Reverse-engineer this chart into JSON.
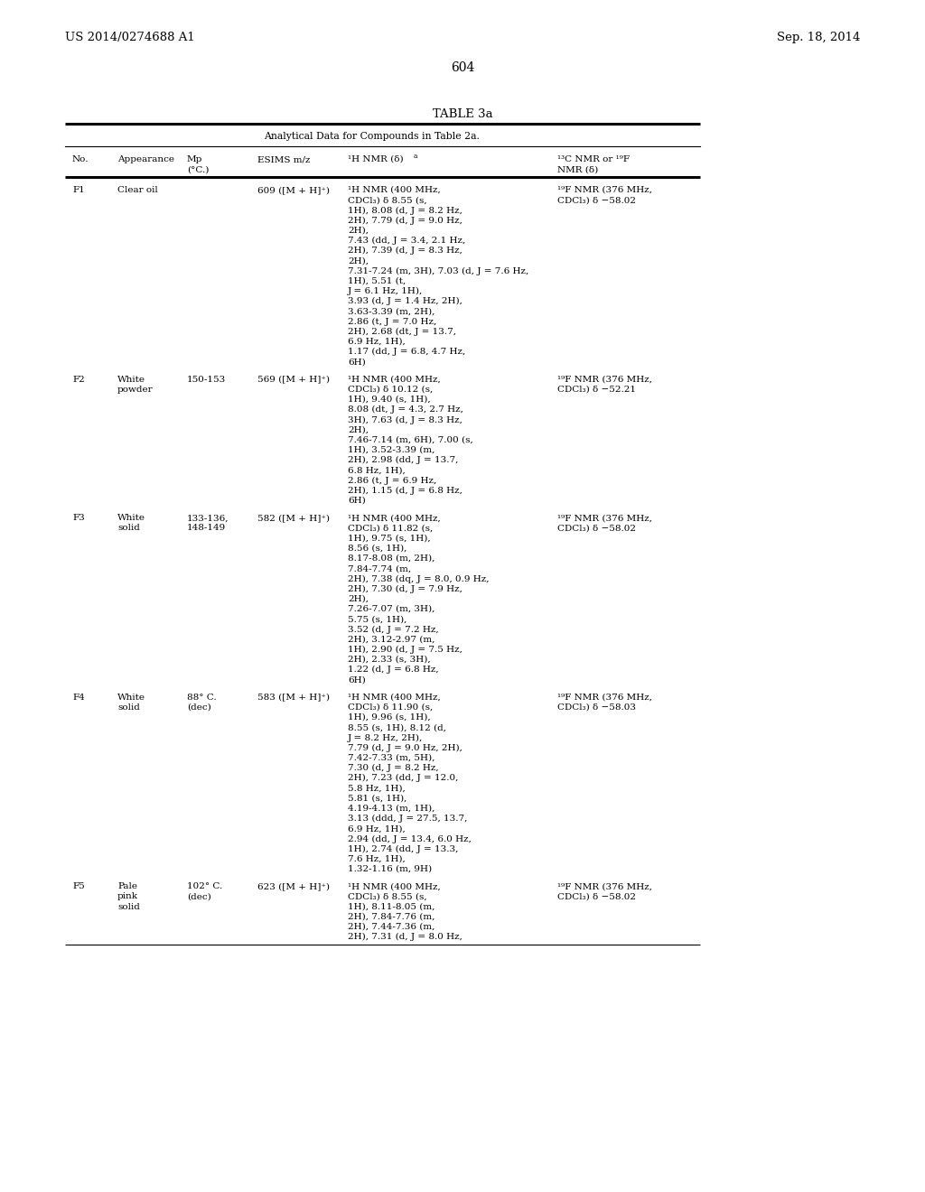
{
  "header_left": "US 2014/0274688 A1",
  "header_right": "Sep. 18, 2014",
  "page_number": "604",
  "table_title": "TABLE 3a",
  "table_subtitle": "Analytical Data for Compounds in Table 2a.",
  "background_color": "#ffffff",
  "text_color": "#000000",
  "rows": [
    {
      "no": "F1",
      "appearance": "Clear oil",
      "mp": "",
      "esims": "609 ([M + H]⁺)",
      "h_nmr": "¹H NMR (400 MHz,\nCDCl₃) δ 8.55 (s,\n1H), 8.08 (d, J = 8.2 Hz,\n2H), 7.79 (d, J = 9.0 Hz,\n2H),\n7.43 (dd, J = 3.4, 2.1 Hz,\n2H), 7.39 (d, J = 8.3 Hz,\n2H),\n7.31-7.24 (m, 3H), 7.03 (d, J = 7.6 Hz,\n1H), 5.51 (t,\nJ = 6.1 Hz, 1H),\n3.93 (d, J = 1.4 Hz, 2H),\n3.63-3.39 (m, 2H),\n2.86 (t, J = 7.0 Hz,\n2H), 2.68 (dt, J = 13.7,\n6.9 Hz, 1H),\n1.17 (dd, J = 6.8, 4.7 Hz,\n6H)",
      "c_f_nmr": "¹⁹F NMR (376 MHz,\nCDCl₃) δ −58.02"
    },
    {
      "no": "F2",
      "appearance": "White\npowder",
      "mp": "150-153",
      "esims": "569 ([M + H]⁺)",
      "h_nmr": "¹H NMR (400 MHz,\nCDCl₃) δ 10.12 (s,\n1H), 9.40 (s, 1H),\n8.08 (dt, J = 4.3, 2.7 Hz,\n3H), 7.63 (d, J = 8.3 Hz,\n2H),\n7.46-7.14 (m, 6H), 7.00 (s,\n1H), 3.52-3.39 (m,\n2H), 2.98 (dd, J = 13.7,\n6.8 Hz, 1H),\n2.86 (t, J = 6.9 Hz,\n2H), 1.15 (d, J = 6.8 Hz,\n6H)",
      "c_f_nmr": "¹⁹F NMR (376 MHz,\nCDCl₃) δ −52.21"
    },
    {
      "no": "F3",
      "appearance": "White\nsolid",
      "mp": "133-136,\n148-149",
      "esims": "582 ([M + H]⁺)",
      "h_nmr": "¹H NMR (400 MHz,\nCDCl₃) δ 11.82 (s,\n1H), 9.75 (s, 1H),\n8.56 (s, 1H),\n8.17-8.08 (m, 2H),\n7.84-7.74 (m,\n2H), 7.38 (dq, J = 8.0, 0.9 Hz,\n2H), 7.30 (d, J = 7.9 Hz,\n2H),\n7.26-7.07 (m, 3H),\n5.75 (s, 1H),\n3.52 (d, J = 7.2 Hz,\n2H), 3.12-2.97 (m,\n1H), 2.90 (d, J = 7.5 Hz,\n2H), 2.33 (s, 3H),\n1.22 (d, J = 6.8 Hz,\n6H)",
      "c_f_nmr": "¹⁹F NMR (376 MHz,\nCDCl₃) δ −58.02"
    },
    {
      "no": "F4",
      "appearance": "White\nsolid",
      "mp": "88° C.\n(dec)",
      "esims": "583 ([M + H]⁺)",
      "h_nmr": "¹H NMR (400 MHz,\nCDCl₃) δ 11.90 (s,\n1H), 9.96 (s, 1H),\n8.55 (s, 1H), 8.12 (d,\nJ = 8.2 Hz, 2H),\n7.79 (d, J = 9.0 Hz, 2H),\n7.42-7.33 (m, 5H),\n7.30 (d, J = 8.2 Hz,\n2H), 7.23 (dd, J = 12.0,\n5.8 Hz, 1H),\n5.81 (s, 1H),\n4.19-4.13 (m, 1H),\n3.13 (ddd, J = 27.5, 13.7,\n6.9 Hz, 1H),\n2.94 (dd, J = 13.4, 6.0 Hz,\n1H), 2.74 (dd, J = 13.3,\n7.6 Hz, 1H),\n1.32-1.16 (m, 9H)",
      "c_f_nmr": "¹⁹F NMR (376 MHz,\nCDCl₃) δ −58.03"
    },
    {
      "no": "F5",
      "appearance": "Pale\npink\nsolid",
      "mp": "102° C.\n(dec)",
      "esims": "623 ([M + H]⁺)",
      "h_nmr": "¹H NMR (400 MHz,\nCDCl₃) δ 8.55 (s,\n1H), 8.11-8.05 (m,\n2H), 7.84-7.76 (m,\n2H), 7.44-7.36 (m,\n2H), 7.31 (d, J = 8.0 Hz,",
      "c_f_nmr": "¹⁹F NMR (376 MHz,\nCDCl₃) δ −58.02"
    }
  ]
}
